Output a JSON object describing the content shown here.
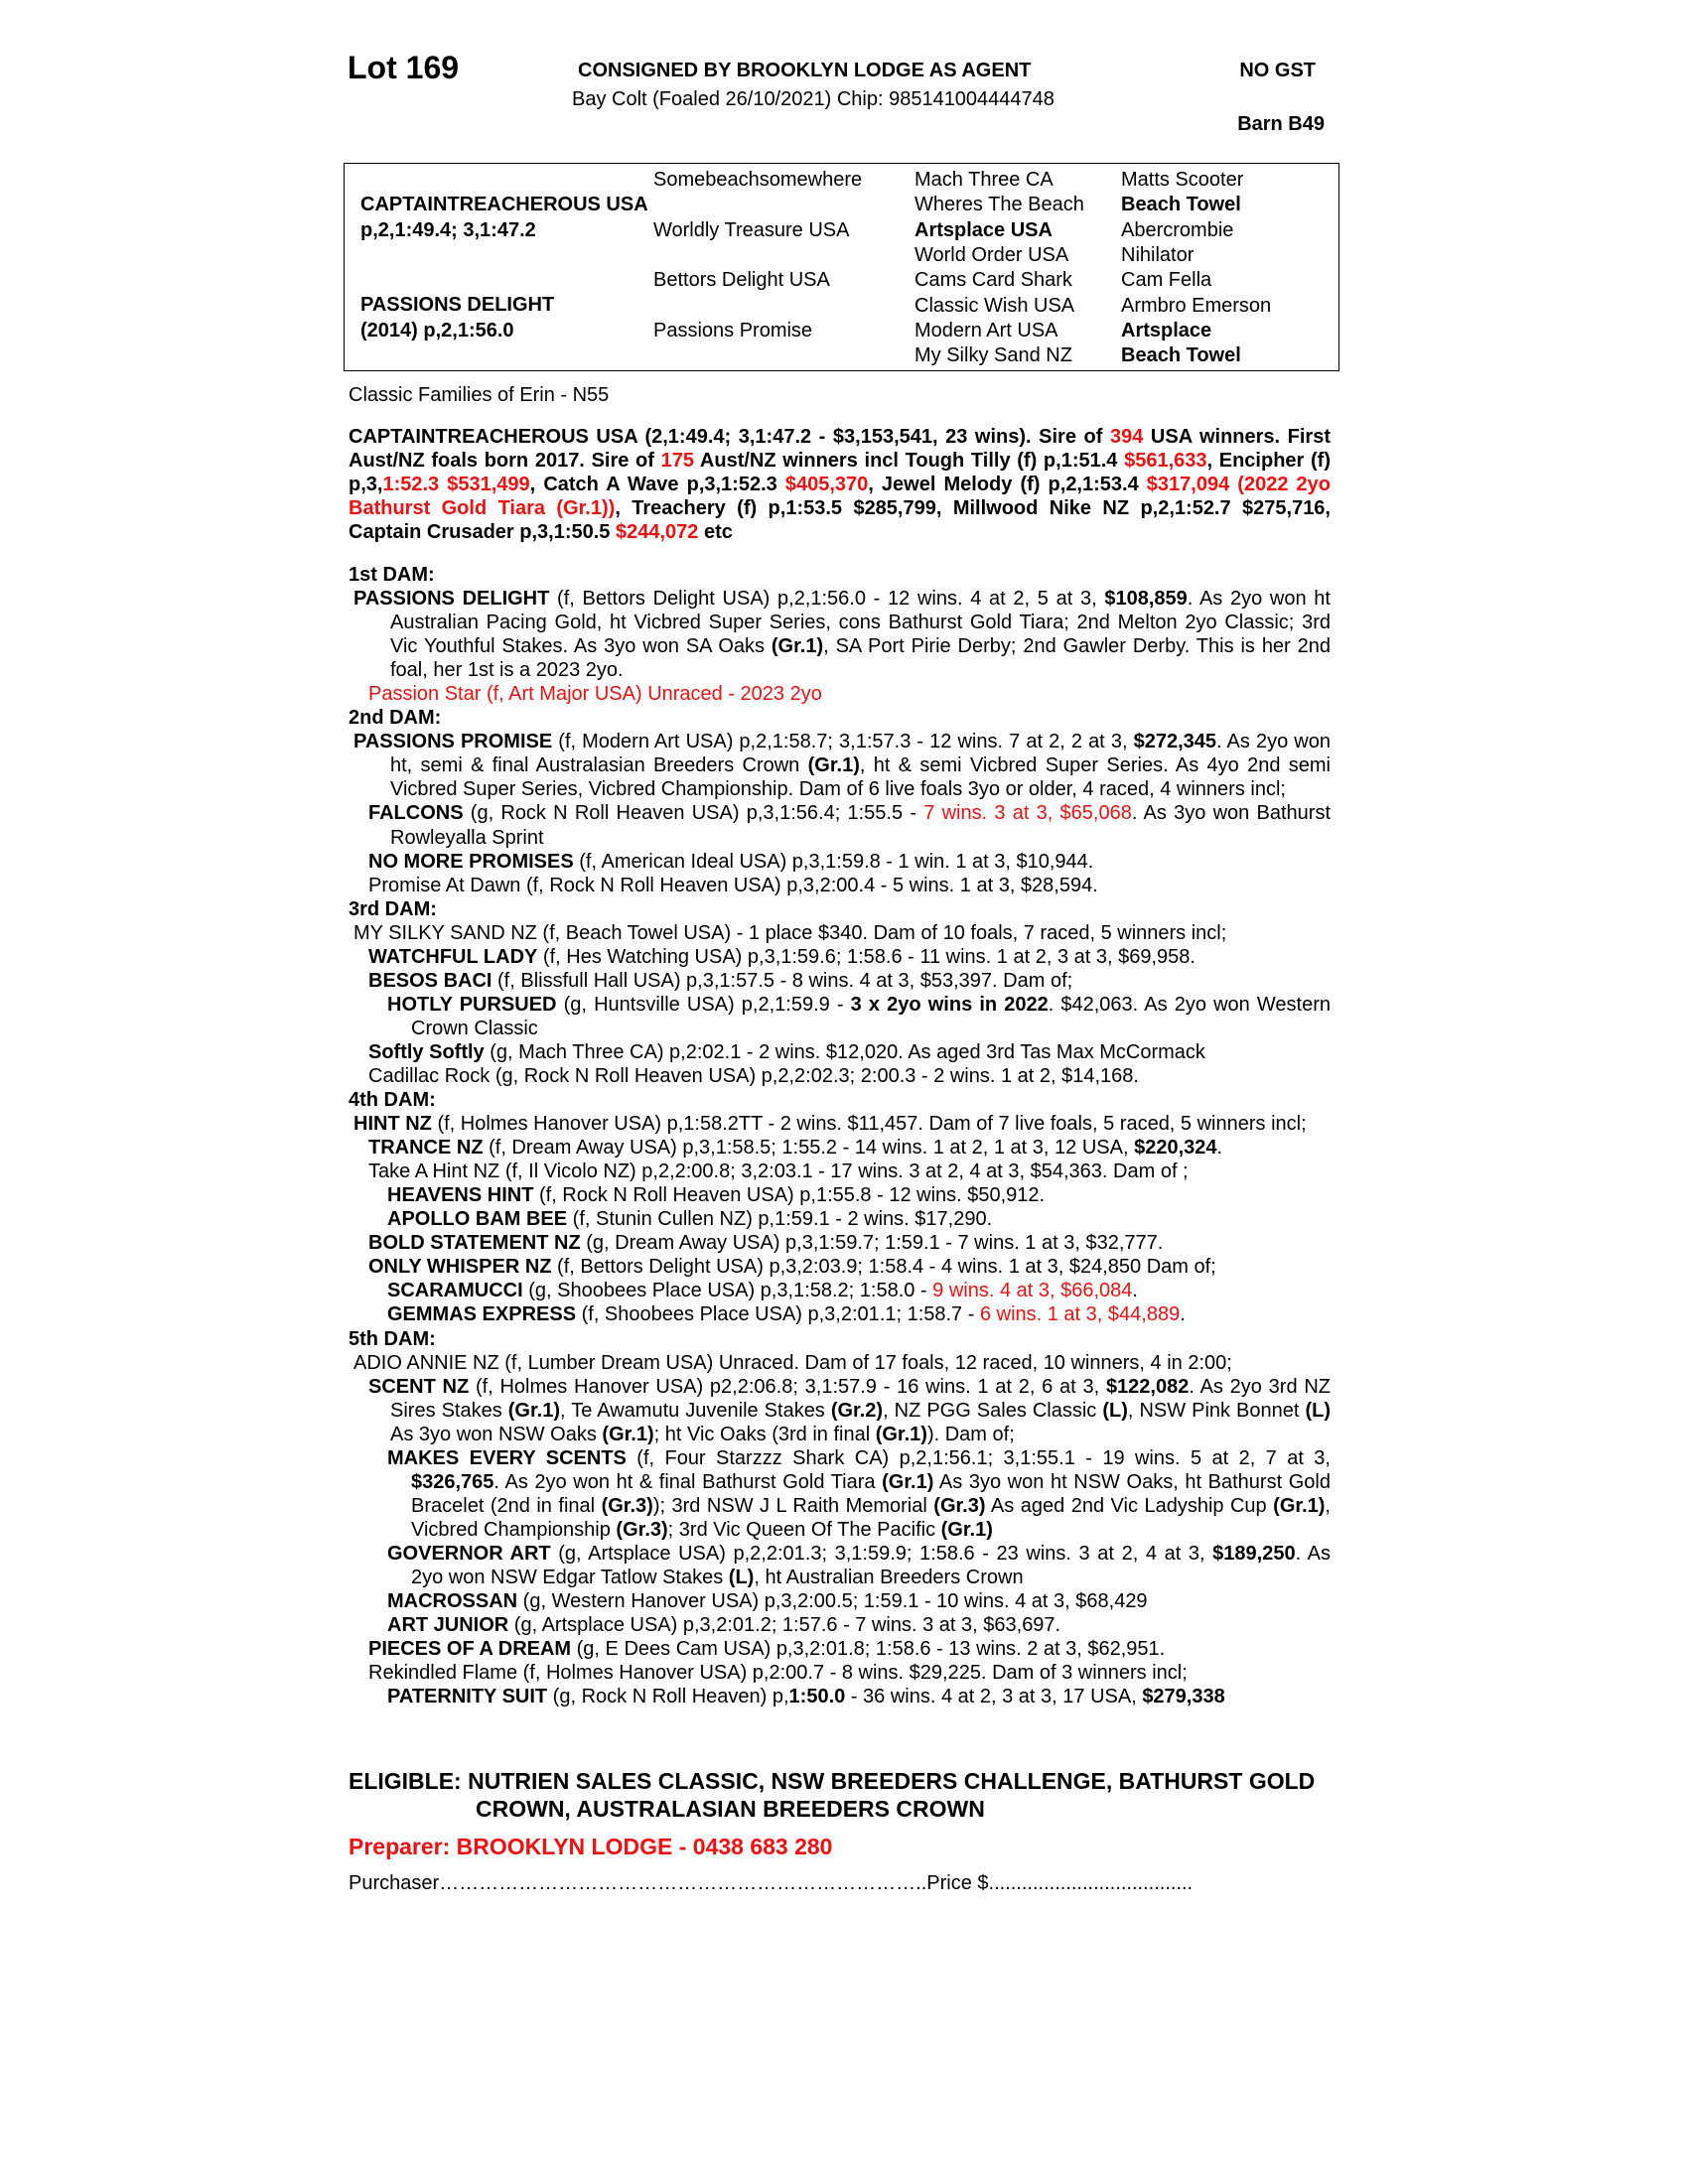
{
  "header": {
    "lot": "Lot 169",
    "consigned": "CONSIGNED BY BROOKLYN LODGE AS AGENT",
    "description": "Bay Colt (Foaled 26/10/2021) Chip: 985141004444748",
    "gst": "NO GST",
    "barn": "Barn B49"
  },
  "pedigree": {
    "sire": "CAPTAINTREACHEROUS USA",
    "sire_record": "p,2,1:49.4; 3,1:47.2",
    "dam": "PASSIONS DELIGHT",
    "dam_record": "(2014) p,2,1:56.0",
    "gen2": [
      "Somebeachsomewhere",
      "Worldly Treasure USA",
      "Bettors Delight USA",
      "Passions Promise"
    ],
    "gen3": [
      {
        "name": "Mach Three CA",
        "bold": false
      },
      {
        "name": "Wheres The Beach",
        "bold": false
      },
      {
        "name": "Artsplace USA",
        "bold": true
      },
      {
        "name": "World Order USA",
        "bold": false
      },
      {
        "name": "Cams Card Shark",
        "bold": false
      },
      {
        "name": "Classic Wish USA",
        "bold": false
      },
      {
        "name": "Modern Art USA",
        "bold": false
      },
      {
        "name": "My Silky Sand NZ",
        "bold": false
      }
    ],
    "gen4": [
      {
        "name": "Matts Scooter",
        "bold": false
      },
      {
        "name": "Beach Towel",
        "bold": true
      },
      {
        "name": "Abercrombie",
        "bold": false
      },
      {
        "name": "Nihilator",
        "bold": false
      },
      {
        "name": "Cam Fella",
        "bold": false
      },
      {
        "name": "Armbro Emerson",
        "bold": false
      },
      {
        "name": "Artsplace",
        "bold": true
      },
      {
        "name": "Beach Towel",
        "bold": true
      }
    ]
  },
  "family": "Classic Families of Erin - N55",
  "sire_summary": [
    {
      "t": "CAPTAINTREACHEROUS USA (2,1:49.4; 3,1:47.2 - $3,153,541, 23 wins). Sire of ",
      "s": ""
    },
    {
      "t": "394",
      "s": "r"
    },
    {
      "t": " USA winners. First Aust/NZ foals born 2017. Sire of ",
      "s": ""
    },
    {
      "t": "175",
      "s": "r"
    },
    {
      "t": " Aust/NZ winners incl Tough Tilly (f) p,1:51.4 ",
      "s": ""
    },
    {
      "t": "$561,633",
      "s": "r"
    },
    {
      "t": ", Encipher (f) p,3,",
      "s": ""
    },
    {
      "t": "1:52.3 $531,499",
      "s": "r"
    },
    {
      "t": ", Catch A Wave p,3,1:52.3 ",
      "s": ""
    },
    {
      "t": "$405,370",
      "s": "r"
    },
    {
      "t": ", Jewel Melody (f) p,2,1:53.4 ",
      "s": ""
    },
    {
      "t": "$317,094 (2022 2yo Bathurst Gold Tiara (Gr.1))",
      "s": "r"
    },
    {
      "t": ", Treachery (f) p,1:53.5 $285,799, Millwood Nike NZ p,2,1:52.7 $275,716, Captain Crusader p,3,1:50.5 ",
      "s": ""
    },
    {
      "t": "$244,072",
      "s": "r"
    },
    {
      "t": " etc",
      "s": ""
    }
  ],
  "dams": [
    {
      "heading": "1st DAM:",
      "entries": [
        {
          "level": 0,
          "segs": [
            {
              "t": "PASSIONS DELIGHT",
              "s": "b"
            },
            {
              "t": " (f, Bettors Delight USA) p,2,1:56.0 - 12 wins. 4 at 2, 5 at 3, ",
              "s": ""
            },
            {
              "t": "$108,859",
              "s": "b"
            },
            {
              "t": ". As 2yo won ht Australian Pacing Gold, ht Vicbred Super Series, cons Bathurst Gold Tiara; 2nd Melton 2yo Classic; 3rd Vic Youthful Stakes. As 3yo won SA Oaks ",
              "s": ""
            },
            {
              "t": "(Gr.1)",
              "s": "b"
            },
            {
              "t": ", SA Port Pirie Derby; 2nd Gawler Derby. This is her 2nd foal, her 1st is a 2023 2yo.",
              "s": ""
            }
          ]
        },
        {
          "level": 1,
          "segs": [
            {
              "t": "Passion Star (f, Art Major USA) Unraced - 2023 2yo",
              "s": "r"
            }
          ]
        }
      ]
    },
    {
      "heading": "2nd DAM:",
      "entries": [
        {
          "level": 0,
          "segs": [
            {
              "t": "PASSIONS PROMISE",
              "s": "b"
            },
            {
              "t": " (f, Modern Art USA) p,2,1:58.7; 3,1:57.3 - 12 wins. 7 at 2, 2 at 3, ",
              "s": ""
            },
            {
              "t": "$272,345",
              "s": "b"
            },
            {
              "t": ". As 2yo won ht, semi & final Australasian Breeders Crown ",
              "s": ""
            },
            {
              "t": "(Gr.1)",
              "s": "b"
            },
            {
              "t": ", ht & semi Vicbred Super Series. As 4yo 2nd semi Vicbred Super Series, Vicbred Championship. Dam of 6 live foals 3yo or older, 4 raced, 4 winners incl;",
              "s": ""
            }
          ]
        },
        {
          "level": 1,
          "segs": [
            {
              "t": "FALCONS",
              "s": "b"
            },
            {
              "t": " (g, Rock N Roll Heaven USA) p,3,1:56.4; 1:55.5 - ",
              "s": ""
            },
            {
              "t": "7 wins. 3 at 3, $65,068",
              "s": "r"
            },
            {
              "t": ". As 3yo won Bathurst Rowleyalla Sprint",
              "s": ""
            }
          ]
        },
        {
          "level": 1,
          "segs": [
            {
              "t": "NO MORE PROMISES",
              "s": "b"
            },
            {
              "t": " (f, American Ideal USA) p,3,1:59.8 - 1 win. 1 at 3, $10,944.",
              "s": ""
            }
          ]
        },
        {
          "level": 1,
          "segs": [
            {
              "t": "Promise At Dawn (f, Rock N Roll Heaven USA) p,3,2:00.4 - 5 wins. 1 at 3, $28,594.",
              "s": ""
            }
          ]
        }
      ]
    },
    {
      "heading": "3rd DAM:",
      "entries": [
        {
          "level": 0,
          "segs": [
            {
              "t": "MY SILKY SAND NZ (f, Beach Towel USA) - 1 place $340. Dam of 10 foals, 7 raced, 5 winners incl;",
              "s": ""
            }
          ]
        },
        {
          "level": 1,
          "segs": [
            {
              "t": "WATCHFUL LADY",
              "s": "b"
            },
            {
              "t": " (f, Hes Watching USA) p,3,1:59.6; 1:58.6 - 11 wins. 1 at 2, 3 at 3, $69,958.",
              "s": ""
            }
          ]
        },
        {
          "level": 1,
          "segs": [
            {
              "t": "BESOS BACI",
              "s": "b"
            },
            {
              "t": " (f, Blissfull Hall USA) p,3,1:57.5 - 8 wins. 4 at 3, $53,397. Dam of;",
              "s": ""
            }
          ]
        },
        {
          "level": 2,
          "segs": [
            {
              "t": "HOTLY PURSUED",
              "s": "b"
            },
            {
              "t": " (g, Huntsville USA) p,2,1:59.9 - ",
              "s": ""
            },
            {
              "t": "3 x 2yo wins in 2022",
              "s": "b"
            },
            {
              "t": ". $42,063. As 2yo won Western Crown Classic",
              "s": ""
            }
          ]
        },
        {
          "level": 1,
          "segs": [
            {
              "t": "Softly Softly",
              "s": "b"
            },
            {
              "t": " (g, Mach Three CA) p,2:02.1 - 2 wins. $12,020. As aged 3rd Tas Max McCormack",
              "s": ""
            }
          ]
        },
        {
          "level": 1,
          "segs": [
            {
              "t": "Cadillac Rock (g, Rock N Roll Heaven USA) p,2,2:02.3; 2:00.3 - 2 wins. 1 at 2, $14,168.",
              "s": ""
            }
          ]
        }
      ]
    },
    {
      "heading": "4th DAM:",
      "entries": [
        {
          "level": 0,
          "segs": [
            {
              "t": "HINT NZ",
              "s": "b"
            },
            {
              "t": " (f, Holmes Hanover USA) p,1:58.2TT - 2 wins. $11,457. Dam of 7 live foals, 5 raced, 5 winners incl;",
              "s": ""
            }
          ]
        },
        {
          "level": 1,
          "segs": [
            {
              "t": "TRANCE NZ",
              "s": "b"
            },
            {
              "t": " (f, Dream Away USA) p,3,1:58.5; 1:55.2 - 14 wins. 1 at 2, 1 at 3, 12 USA, ",
              "s": ""
            },
            {
              "t": "$220,324",
              "s": "b"
            },
            {
              "t": ".",
              "s": ""
            }
          ]
        },
        {
          "level": 1,
          "segs": [
            {
              "t": "Take A Hint NZ (f, Il Vicolo NZ) p,2,2:00.8; 3,2:03.1 - 17 wins. 3 at 2, 4 at 3, $54,363. Dam of ;",
              "s": ""
            }
          ]
        },
        {
          "level": 2,
          "segs": [
            {
              "t": "HEAVENS HINT",
              "s": "b"
            },
            {
              "t": " (f, Rock N Roll Heaven USA) p,1:55.8 - 12 wins. $50,912.",
              "s": ""
            }
          ]
        },
        {
          "level": 2,
          "segs": [
            {
              "t": "APOLLO BAM BEE",
              "s": "b"
            },
            {
              "t": " (f, Stunin Cullen NZ) p,1:59.1 - 2 wins. $17,290.",
              "s": ""
            }
          ]
        },
        {
          "level": 1,
          "segs": [
            {
              "t": "BOLD STATEMENT NZ",
              "s": "b"
            },
            {
              "t": " (g, Dream Away USA) p,3,1:59.7; 1:59.1 - 7 wins. 1 at 3, $32,777.",
              "s": ""
            }
          ]
        },
        {
          "level": 1,
          "segs": [
            {
              "t": "ONLY WHISPER NZ",
              "s": "b"
            },
            {
              "t": " (f, Bettors Delight USA) p,3,2:03.9; 1:58.4 - 4 wins. 1 at 3, $24,850 Dam of;",
              "s": ""
            }
          ]
        },
        {
          "level": 2,
          "segs": [
            {
              "t": "SCARAMUCCI",
              "s": "b"
            },
            {
              "t": " (g, Shoobees Place USA) p,3,1:58.2; 1:58.0 - ",
              "s": ""
            },
            {
              "t": "9 wins. 4 at 3, $66,084",
              "s": "r"
            },
            {
              "t": ".",
              "s": ""
            }
          ]
        },
        {
          "level": 2,
          "segs": [
            {
              "t": "GEMMAS EXPRESS",
              "s": "b"
            },
            {
              "t": " (f, Shoobees Place USA) p,3,2:01.1; 1:58.7 - ",
              "s": ""
            },
            {
              "t": "6 wins. 1 at 3, $44,889",
              "s": "r"
            },
            {
              "t": ".",
              "s": ""
            }
          ]
        }
      ]
    },
    {
      "heading": "5th DAM:",
      "entries": [
        {
          "level": 0,
          "segs": [
            {
              "t": "ADIO ANNIE NZ (f, Lumber Dream USA) Unraced. Dam of 17 foals, 12 raced, 10 winners, 4 in 2:00;",
              "s": ""
            }
          ]
        },
        {
          "level": 1,
          "segs": [
            {
              "t": "SCENT NZ",
              "s": "b"
            },
            {
              "t": " (f, Holmes Hanover USA) p2,2:06.8; 3,1:57.9 - 16 wins. 1 at 2, 6 at 3, ",
              "s": ""
            },
            {
              "t": "$122,082",
              "s": "b"
            },
            {
              "t": ". As 2yo 3rd NZ Sires Stakes ",
              "s": ""
            },
            {
              "t": "(Gr.1)",
              "s": "b"
            },
            {
              "t": ", Te Awamutu Juvenile Stakes ",
              "s": ""
            },
            {
              "t": "(Gr.2)",
              "s": "b"
            },
            {
              "t": ", NZ PGG Sales Classic ",
              "s": ""
            },
            {
              "t": "(L)",
              "s": "b"
            },
            {
              "t": ", NSW Pink Bonnet ",
              "s": ""
            },
            {
              "t": "(L)",
              "s": "b"
            },
            {
              "t": " As 3yo won NSW Oaks ",
              "s": ""
            },
            {
              "t": "(Gr.1)",
              "s": "b"
            },
            {
              "t": "; ht Vic Oaks (3rd in final ",
              "s": ""
            },
            {
              "t": "(Gr.1)",
              "s": "b"
            },
            {
              "t": "). Dam of;",
              "s": ""
            }
          ]
        },
        {
          "level": 2,
          "segs": [
            {
              "t": "MAKES EVERY SCENTS",
              "s": "b"
            },
            {
              "t": " (f, Four Starzzz Shark CA) p,2,1:56.1; 3,1:55.1 - 19 wins. 5 at 2, 7 at 3, ",
              "s": ""
            },
            {
              "t": "$326,765",
              "s": "b"
            },
            {
              "t": ". As 2yo won ht & final Bathurst Gold Tiara ",
              "s": ""
            },
            {
              "t": "(Gr.1)",
              "s": "b"
            },
            {
              "t": " As 3yo won ht NSW Oaks, ht Bathurst Gold Bracelet (2nd in final ",
              "s": ""
            },
            {
              "t": "(Gr.3)",
              "s": "b"
            },
            {
              "t": "); 3rd NSW J L Raith Memorial ",
              "s": ""
            },
            {
              "t": "(Gr.3)",
              "s": "b"
            },
            {
              "t": " As aged 2nd Vic Ladyship Cup ",
              "s": ""
            },
            {
              "t": "(Gr.1)",
              "s": "b"
            },
            {
              "t": ", Vicbred Championship ",
              "s": ""
            },
            {
              "t": "(Gr.3)",
              "s": "b"
            },
            {
              "t": "; 3rd Vic Queen Of The Pacific ",
              "s": ""
            },
            {
              "t": "(Gr.1)",
              "s": "b"
            }
          ]
        },
        {
          "level": 2,
          "segs": [
            {
              "t": "GOVERNOR ART",
              "s": "b"
            },
            {
              "t": " (g, Artsplace USA) p,2,2:01.3; 3,1:59.9; 1:58.6 - 23 wins. 3 at 2, 4 at 3, ",
              "s": ""
            },
            {
              "t": "$189,250",
              "s": "b"
            },
            {
              "t": ". As 2yo won NSW Edgar Tatlow Stakes ",
              "s": ""
            },
            {
              "t": "(L)",
              "s": "b"
            },
            {
              "t": ", ht Australian Breeders Crown",
              "s": ""
            }
          ]
        },
        {
          "level": 2,
          "segs": [
            {
              "t": "MACROSSAN",
              "s": "b"
            },
            {
              "t": " (g, Western Hanover USA) p,3,2:00.5; 1:59.1 - 10 wins. 4 at 3, $68,429",
              "s": ""
            }
          ]
        },
        {
          "level": 2,
          "segs": [
            {
              "t": "ART JUNIOR",
              "s": "b"
            },
            {
              "t": " (g, Artsplace USA) p,3,2:01.2; 1:57.6 - 7 wins. 3 at 3, $63,697.",
              "s": ""
            }
          ]
        },
        {
          "level": 1,
          "segs": [
            {
              "t": "PIECES OF A DREAM",
              "s": "b"
            },
            {
              "t": " (g, E Dees Cam USA) p,3,2:01.8; 1:58.6 - 13 wins. 2 at 3, $62,951.",
              "s": ""
            }
          ]
        },
        {
          "level": 1,
          "segs": [
            {
              "t": "Rekindled Flame (f, Holmes Hanover USA) p,2:00.7 - 8 wins. $29,225. Dam of 3 winners incl;",
              "s": ""
            }
          ]
        },
        {
          "level": 2,
          "segs": [
            {
              "t": "PATERNITY SUIT",
              "s": "b"
            },
            {
              "t": " (g, Rock N Roll Heaven) p,",
              "s": ""
            },
            {
              "t": "1:50.0",
              "s": "b"
            },
            {
              "t": " - 36 wins. 4 at 2, 3 at 3, 17 USA, ",
              "s": ""
            },
            {
              "t": "$279,338",
              "s": "b"
            }
          ]
        }
      ]
    }
  ],
  "eligible": "ELIGIBLE: NUTRIEN SALES CLASSIC, NSW BREEDERS CHALLENGE, BATHURST GOLD CROWN, AUSTRALASIAN BREEDERS CROWN",
  "preparer": "Preparer: BROOKLYN LODGE - 0438 683 280",
  "purchaser": "Purchaser………………………………………………………………..Price $.....................................",
  "colors": {
    "highlight": "#f01010",
    "text": "#000000"
  }
}
